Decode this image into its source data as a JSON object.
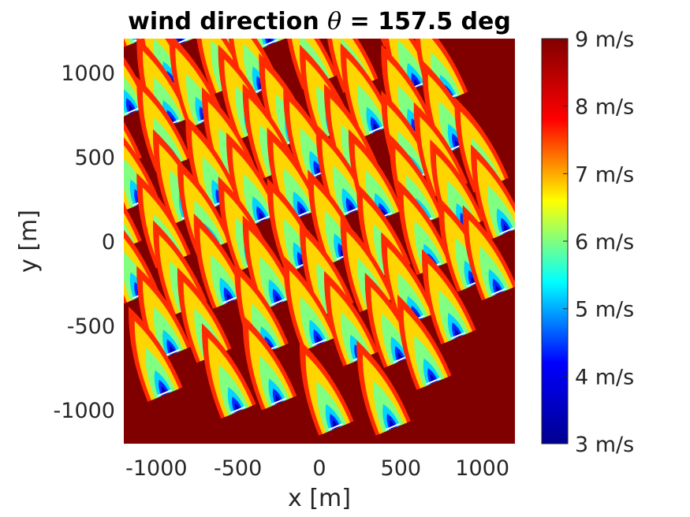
{
  "chart_data": {
    "type": "heatmap",
    "title_prefix": "wind direction ",
    "title_theta": "θ",
    "title_suffix": " = 157.5 deg",
    "xlabel": "x [m]",
    "ylabel": "y [m]",
    "xlim": [
      -1200,
      1200
    ],
    "ylim": [
      -1200,
      1200
    ],
    "xticks": [
      -1000,
      -500,
      0,
      500,
      1000
    ],
    "xtick_labels": [
      "-1000",
      "-500",
      "0",
      "500",
      "1000"
    ],
    "yticks": [
      1000,
      500,
      0,
      -500,
      -1000
    ],
    "ytick_labels": [
      "1000",
      "500",
      "0",
      "-500",
      "-1000"
    ],
    "colormap": "jet",
    "colorbar": {
      "min": 3,
      "max": 9,
      "unit": "m/s",
      "ticks": [
        9,
        8,
        7,
        6,
        5,
        4,
        3
      ],
      "tick_labels": [
        "9 m/s",
        "8 m/s",
        "7 m/s",
        "6 m/s",
        "5 m/s",
        "4 m/s",
        "3 m/s"
      ],
      "stops": [
        "#00008f",
        "#0000ff",
        "#00ffff",
        "#ffff00",
        "#ff0000",
        "#800000"
      ]
    },
    "background_speed": 9,
    "wind_direction_deg": 157.5,
    "turbines": [
      {
        "x": -1100,
        "y": 1200
      },
      {
        "x": -850,
        "y": 1180
      },
      {
        "x": -500,
        "y": 1170
      },
      {
        "x": -300,
        "y": 1175
      },
      {
        "x": 200,
        "y": 1210
      },
      {
        "x": 500,
        "y": 1200
      },
      {
        "x": -900,
        "y": 930
      },
      {
        "x": -550,
        "y": 920
      },
      {
        "x": -350,
        "y": 900
      },
      {
        "x": 0,
        "y": 950
      },
      {
        "x": 250,
        "y": 930
      },
      {
        "x": 600,
        "y": 920
      },
      {
        "x": 800,
        "y": 850
      },
      {
        "x": -1150,
        "y": 770
      },
      {
        "x": -900,
        "y": 700
      },
      {
        "x": -700,
        "y": 720
      },
      {
        "x": -400,
        "y": 650
      },
      {
        "x": -150,
        "y": 600
      },
      {
        "x": 100,
        "y": 650
      },
      {
        "x": 350,
        "y": 660
      },
      {
        "x": 600,
        "y": 650
      },
      {
        "x": 850,
        "y": 560
      },
      {
        "x": -1200,
        "y": 460
      },
      {
        "x": -900,
        "y": 460
      },
      {
        "x": -500,
        "y": 400
      },
      {
        "x": -250,
        "y": 420
      },
      {
        "x": 0,
        "y": 400
      },
      {
        "x": 250,
        "y": 420
      },
      {
        "x": 600,
        "y": 380
      },
      {
        "x": 800,
        "y": 310
      },
      {
        "x": 1050,
        "y": 340
      },
      {
        "x": -1100,
        "y": 230
      },
      {
        "x": -800,
        "y": 150
      },
      {
        "x": -600,
        "y": 230
      },
      {
        "x": -350,
        "y": 130
      },
      {
        "x": -100,
        "y": 160
      },
      {
        "x": 200,
        "y": 180
      },
      {
        "x": 400,
        "y": 150
      },
      {
        "x": 650,
        "y": 120
      },
      {
        "x": 900,
        "y": 90
      },
      {
        "x": 1150,
        "y": 60
      },
      {
        "x": -1200,
        "y": -30
      },
      {
        "x": -900,
        "y": -110
      },
      {
        "x": -650,
        "y": -30
      },
      {
        "x": -400,
        "y": -130
      },
      {
        "x": -100,
        "y": -140
      },
      {
        "x": 150,
        "y": -90
      },
      {
        "x": 450,
        "y": -170
      },
      {
        "x": 700,
        "y": -150
      },
      {
        "x": 950,
        "y": -250
      },
      {
        "x": 1100,
        "y": -300
      },
      {
        "x": -1100,
        "y": -320
      },
      {
        "x": -800,
        "y": -390
      },
      {
        "x": -550,
        "y": -350
      },
      {
        "x": -250,
        "y": -360
      },
      {
        "x": 100,
        "y": -400
      },
      {
        "x": 350,
        "y": -370
      },
      {
        "x": 600,
        "y": -460
      },
      {
        "x": 850,
        "y": -560
      },
      {
        "x": -900,
        "y": -660
      },
      {
        "x": -650,
        "y": -670
      },
      {
        "x": -300,
        "y": -640
      },
      {
        "x": 0,
        "y": -600
      },
      {
        "x": 250,
        "y": -690
      },
      {
        "x": 500,
        "y": -700
      },
      {
        "x": -950,
        "y": -900
      },
      {
        "x": -500,
        "y": -1000
      },
      {
        "x": -250,
        "y": -950
      },
      {
        "x": 100,
        "y": -1100
      },
      {
        "x": 450,
        "y": -1100
      },
      {
        "x": 700,
        "y": -830
      }
    ]
  }
}
